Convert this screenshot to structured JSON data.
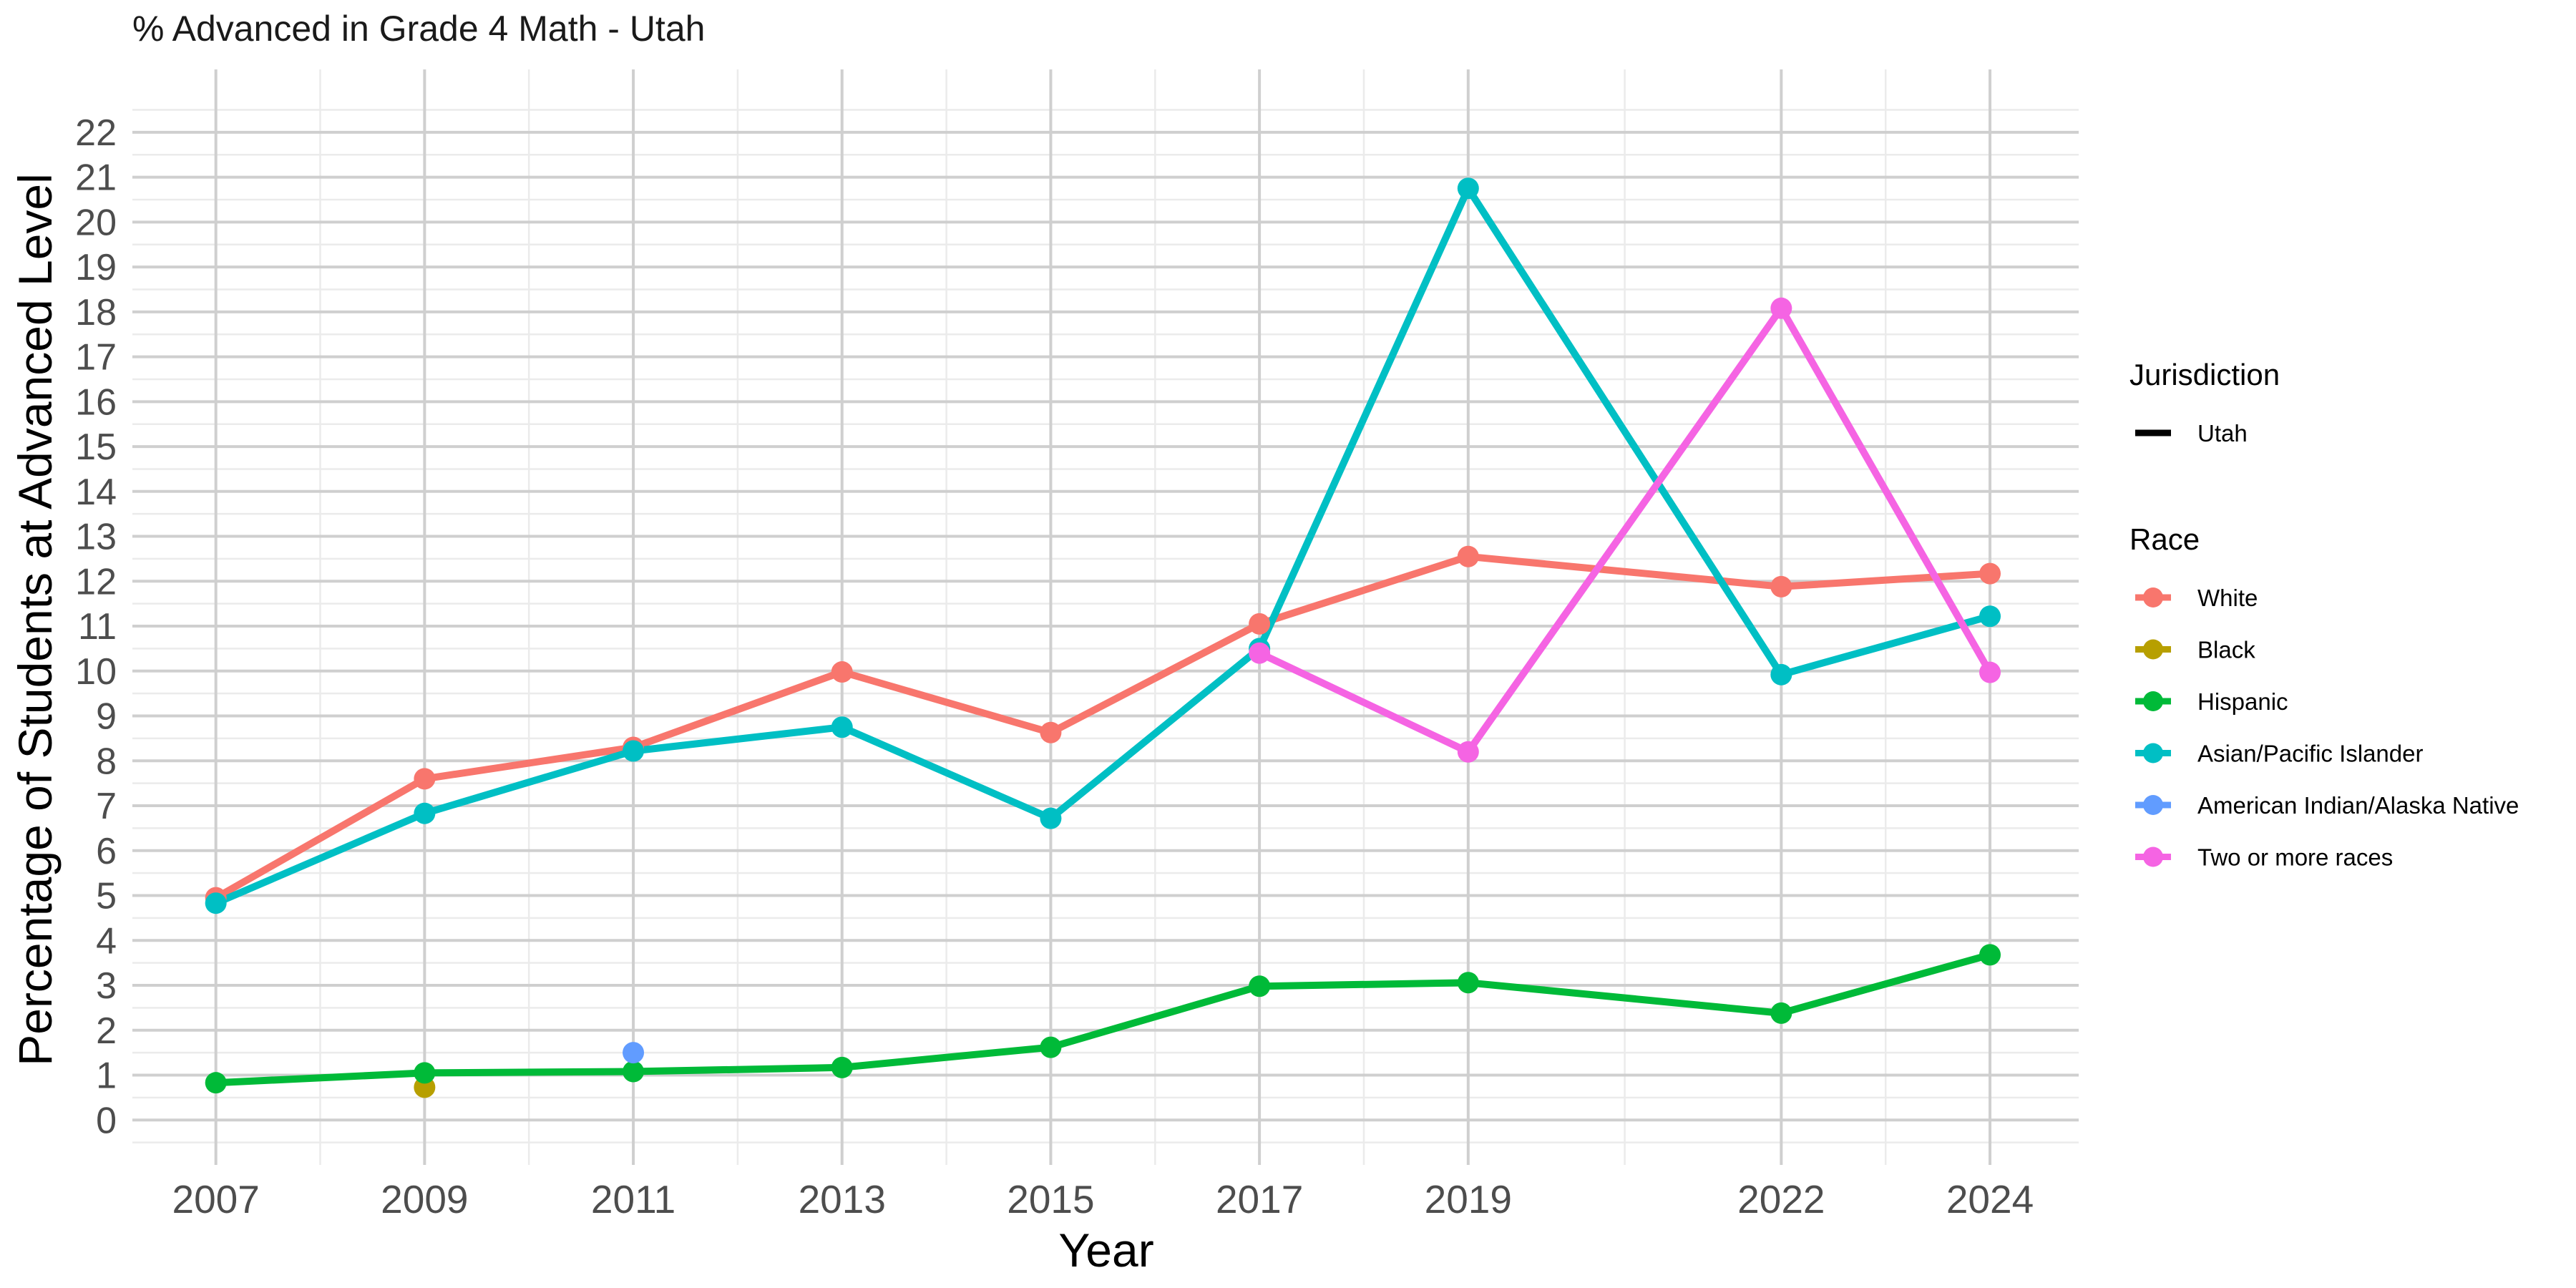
{
  "chart_data": {
    "type": "line",
    "title": "% Advanced in Grade 4 Math - Utah",
    "xlabel": "Year",
    "ylabel": "Percentage of Students at Advanced Level",
    "x_ticks": [
      2007,
      2009,
      2011,
      2013,
      2015,
      2017,
      2019,
      2022,
      2024
    ],
    "y_ticks": [
      0,
      1,
      2,
      3,
      4,
      5,
      6,
      7,
      8,
      9,
      10,
      11,
      12,
      13,
      14,
      15,
      16,
      17,
      18,
      19,
      20,
      21,
      22
    ],
    "xlim": [
      2006.2,
      2024.85
    ],
    "ylim": [
      -1.0,
      23.4
    ],
    "grid": true,
    "legend_position": "right",
    "legends": {
      "jurisdiction": {
        "title": "Jurisdiction",
        "items": [
          {
            "name": "Utah",
            "color": "#000000"
          }
        ]
      },
      "race": {
        "title": "Race"
      }
    },
    "series": [
      {
        "name": "White",
        "color": "#F8766D",
        "points": [
          {
            "x": 2007,
            "y": 4.95
          },
          {
            "x": 2009,
            "y": 7.6
          },
          {
            "x": 2011,
            "y": 8.3
          },
          {
            "x": 2013,
            "y": 9.98
          },
          {
            "x": 2015,
            "y": 8.63
          },
          {
            "x": 2017,
            "y": 11.05
          },
          {
            "x": 2019,
            "y": 12.55
          },
          {
            "x": 2022,
            "y": 11.88
          },
          {
            "x": 2024,
            "y": 12.17
          }
        ]
      },
      {
        "name": "Black",
        "color": "#B79F00",
        "points": [
          {
            "x": 2009,
            "y": 0.73
          }
        ]
      },
      {
        "name": "Hispanic",
        "color": "#00BA38",
        "points": [
          {
            "x": 2007,
            "y": 0.83
          },
          {
            "x": 2009,
            "y": 1.05
          },
          {
            "x": 2011,
            "y": 1.08
          },
          {
            "x": 2013,
            "y": 1.17
          },
          {
            "x": 2015,
            "y": 1.62
          },
          {
            "x": 2017,
            "y": 2.98
          },
          {
            "x": 2019,
            "y": 3.06
          },
          {
            "x": 2022,
            "y": 2.38
          },
          {
            "x": 2024,
            "y": 3.68
          }
        ]
      },
      {
        "name": "Asian/Pacific Islander",
        "color": "#00BFC4",
        "points": [
          {
            "x": 2007,
            "y": 4.83
          },
          {
            "x": 2009,
            "y": 6.83
          },
          {
            "x": 2011,
            "y": 8.22
          },
          {
            "x": 2013,
            "y": 8.75
          },
          {
            "x": 2015,
            "y": 6.72
          },
          {
            "x": 2017,
            "y": 10.5
          },
          {
            "x": 2019,
            "y": 20.75
          },
          {
            "x": 2022,
            "y": 9.92
          },
          {
            "x": 2024,
            "y": 11.22
          }
        ]
      },
      {
        "name": "American Indian/Alaska Native",
        "color": "#619CFF",
        "points": [
          {
            "x": 2011,
            "y": 1.5
          }
        ]
      },
      {
        "name": "Two or more races",
        "color": "#F564E3",
        "points": [
          {
            "x": 2017,
            "y": 10.4
          },
          {
            "x": 2019,
            "y": 8.2
          },
          {
            "x": 2022,
            "y": 18.08
          },
          {
            "x": 2024,
            "y": 9.97
          }
        ]
      }
    ]
  }
}
